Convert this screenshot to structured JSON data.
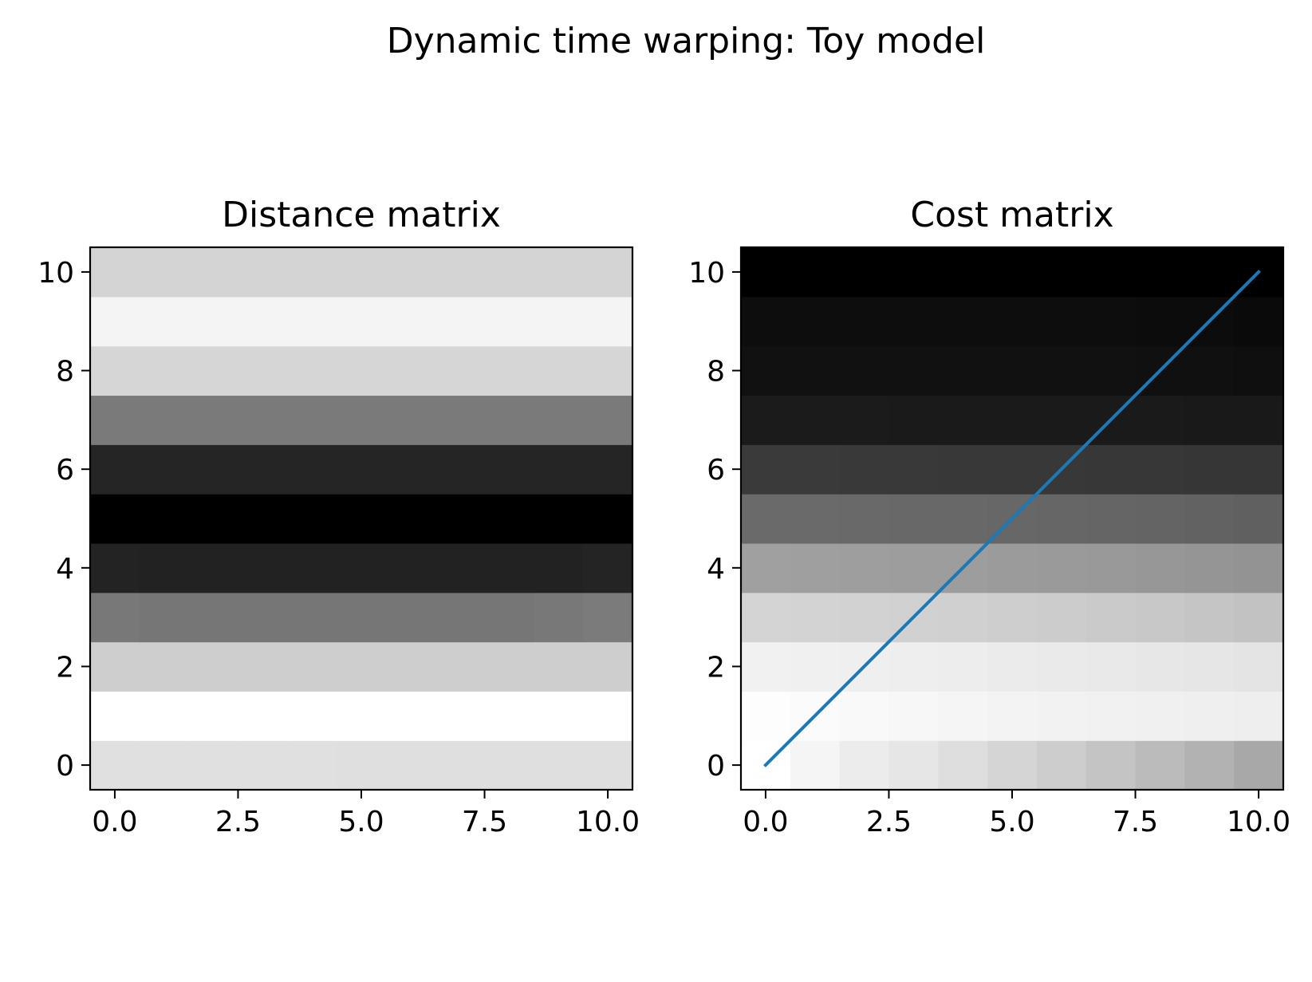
{
  "figure": {
    "suptitle": "Dynamic time warping: Toy model"
  },
  "chart_data": [
    {
      "type": "heatmap",
      "title": "Distance matrix",
      "xlabel": "",
      "ylabel": "",
      "colormap": "gray",
      "xlim": [
        -0.5,
        10.5
      ],
      "ylim": [
        -0.5,
        10.5
      ],
      "xticks": [
        "0.0",
        "2.5",
        "5.0",
        "7.5",
        "10.0"
      ],
      "xtick_values": [
        0,
        2.5,
        5,
        7.5,
        10
      ],
      "yticks": [
        "0",
        "2",
        "4",
        "6",
        "8",
        "10"
      ],
      "ytick_values": [
        0,
        2,
        4,
        6,
        8,
        10
      ],
      "matrix_gray": [
        [
          224,
          224,
          224,
          224,
          224,
          223,
          223,
          223,
          223,
          223,
          223
        ],
        [
          255,
          255,
          255,
          255,
          255,
          255,
          255,
          255,
          255,
          255,
          255
        ],
        [
          206,
          206,
          206,
          206,
          206,
          206,
          206,
          206,
          206,
          206,
          206
        ],
        [
          120,
          118,
          118,
          118,
          118,
          118,
          118,
          118,
          118,
          120,
          123
        ],
        [
          35,
          34,
          34,
          34,
          34,
          34,
          34,
          34,
          34,
          34,
          36
        ],
        [
          0,
          0,
          0,
          0,
          0,
          0,
          0,
          0,
          0,
          0,
          0
        ],
        [
          37,
          37,
          37,
          37,
          37,
          37,
          37,
          37,
          37,
          37,
          37
        ],
        [
          122,
          122,
          122,
          122,
          122,
          122,
          122,
          122,
          122,
          122,
          122
        ],
        [
          214,
          214,
          214,
          214,
          214,
          214,
          214,
          214,
          214,
          214,
          214
        ],
        [
          244,
          244,
          244,
          244,
          244,
          244,
          244,
          244,
          244,
          244,
          244
        ],
        [
          212,
          212,
          212,
          212,
          212,
          212,
          212,
          212,
          212,
          212,
          212
        ]
      ]
    },
    {
      "type": "heatmap",
      "title": "Cost matrix",
      "xlabel": "",
      "ylabel": "",
      "colormap": "gray",
      "xlim": [
        -0.5,
        10.5
      ],
      "ylim": [
        -0.5,
        10.5
      ],
      "xticks": [
        "0.0",
        "2.5",
        "5.0",
        "7.5",
        "10.0"
      ],
      "xtick_values": [
        0,
        2.5,
        5,
        7.5,
        10
      ],
      "yticks": [
        "0",
        "2",
        "4",
        "6",
        "8",
        "10"
      ],
      "ytick_values": [
        0,
        2,
        4,
        6,
        8,
        10
      ],
      "matrix_gray": [
        [
          255,
          245,
          236,
          230,
          222,
          213,
          205,
          196,
          187,
          178,
          168
        ],
        [
          253,
          251,
          249,
          247,
          245,
          243,
          242,
          241,
          240,
          239,
          238
        ],
        [
          241,
          240,
          239,
          238,
          237,
          235,
          234,
          233,
          231,
          230,
          228
        ],
        [
          212,
          211,
          210,
          209,
          208,
          206,
          204,
          202,
          200,
          197,
          194
        ],
        [
          160,
          159,
          158,
          157,
          157,
          155,
          154,
          153,
          151,
          149,
          147
        ],
        [
          106,
          106,
          105,
          104,
          104,
          103,
          102,
          101,
          100,
          98,
          96
        ],
        [
          58,
          58,
          57,
          57,
          56,
          56,
          56,
          55,
          55,
          54,
          54
        ],
        [
          27,
          27,
          27,
          26,
          26,
          26,
          26,
          26,
          26,
          25,
          25
        ],
        [
          17,
          17,
          17,
          17,
          17,
          17,
          17,
          17,
          16,
          16,
          15
        ],
        [
          13,
          13,
          13,
          13,
          13,
          13,
          13,
          13,
          12,
          12,
          10
        ],
        [
          0,
          0,
          0,
          0,
          0,
          0,
          0,
          0,
          0,
          0,
          0
        ]
      ],
      "path": {
        "color": "#1f77b4",
        "x": [
          0,
          10
        ],
        "y": [
          0,
          10
        ]
      }
    }
  ]
}
